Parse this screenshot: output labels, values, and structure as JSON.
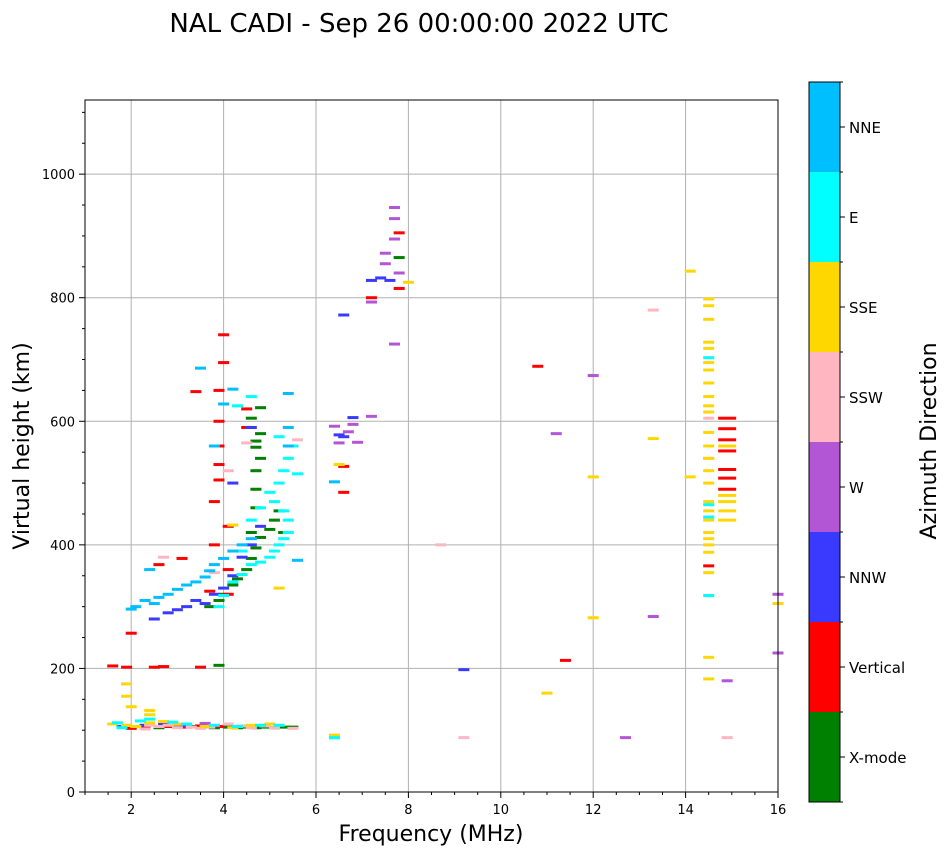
{
  "chart_data": {
    "type": "scatter",
    "title": "NAL CADI - Sep 26 00:00:00 2022 UTC",
    "xlabel": "Frequency (MHz)",
    "ylabel": "Virtual height (km)",
    "xlim": [
      1,
      16
    ],
    "ylim": [
      0,
      1120
    ],
    "xticks": [
      2,
      4,
      6,
      8,
      10,
      12,
      14,
      16
    ],
    "yticks": [
      0,
      200,
      400,
      600,
      800,
      1000
    ],
    "grid": true,
    "colorbar": {
      "title": "Azimuth Direction",
      "categories": [
        {
          "name": "X-mode",
          "color": "#008000"
        },
        {
          "name": "Vertical",
          "color": "#ff0000"
        },
        {
          "name": "NNW",
          "color": "#3a3aff"
        },
        {
          "name": "W",
          "color": "#b256d6"
        },
        {
          "name": "SSW",
          "color": "#ffb6c1"
        },
        {
          "name": "SSE",
          "color": "#ffd700"
        },
        {
          "name": "E",
          "color": "#00ffff"
        },
        {
          "name": "NNE",
          "color": "#00bfff"
        }
      ]
    },
    "series": [
      {
        "name": "X-mode",
        "points": [
          [
            2.2,
            106
          ],
          [
            2.6,
            104
          ],
          [
            3.0,
            105
          ],
          [
            3.4,
            106
          ],
          [
            3.8,
            104
          ],
          [
            4.1,
            105
          ],
          [
            4.3,
            104
          ],
          [
            4.5,
            105
          ],
          [
            4.7,
            104
          ],
          [
            4.9,
            105
          ],
          [
            5.1,
            104
          ],
          [
            5.3,
            105
          ],
          [
            5.5,
            105
          ],
          [
            3.9,
            205
          ],
          [
            3.7,
            300
          ],
          [
            3.9,
            310
          ],
          [
            4.0,
            320
          ],
          [
            4.2,
            335
          ],
          [
            4.3,
            345
          ],
          [
            4.5,
            360
          ],
          [
            4.6,
            378
          ],
          [
            4.7,
            395
          ],
          [
            4.8,
            412
          ],
          [
            5.0,
            425
          ],
          [
            5.1,
            440
          ],
          [
            5.2,
            455
          ],
          [
            4.6,
            420
          ],
          [
            4.7,
            460
          ],
          [
            4.7,
            490
          ],
          [
            4.7,
            520
          ],
          [
            4.8,
            540
          ],
          [
            4.7,
            558
          ],
          [
            4.7,
            568
          ],
          [
            4.8,
            580
          ],
          [
            4.6,
            605
          ],
          [
            4.8,
            622
          ],
          [
            5.3,
            420
          ],
          [
            7.8,
            865
          ],
          [
            6.4,
            88
          ]
        ]
      },
      {
        "name": "Vertical",
        "points": [
          [
            1.6,
            204
          ],
          [
            1.9,
            202
          ],
          [
            2.5,
            202
          ],
          [
            2.7,
            203
          ],
          [
            3.5,
            202
          ],
          [
            2.0,
            257
          ],
          [
            2.6,
            368
          ],
          [
            3.1,
            378
          ],
          [
            3.4,
            648
          ],
          [
            3.7,
            325
          ],
          [
            3.8,
            400
          ],
          [
            3.8,
            470
          ],
          [
            3.9,
            505
          ],
          [
            3.9,
            530
          ],
          [
            3.9,
            560
          ],
          [
            3.9,
            600
          ],
          [
            3.9,
            650
          ],
          [
            4.0,
            695
          ],
          [
            4.0,
            740
          ],
          [
            4.1,
            320
          ],
          [
            4.1,
            360
          ],
          [
            4.1,
            430
          ],
          [
            4.5,
            590
          ],
          [
            4.5,
            620
          ],
          [
            2.0,
            103
          ],
          [
            2.3,
            104
          ],
          [
            2.8,
            106
          ],
          [
            3.2,
            105
          ],
          [
            3.5,
            107
          ],
          [
            3.9,
            106
          ],
          [
            6.6,
            527
          ],
          [
            6.6,
            485
          ],
          [
            7.2,
            800
          ],
          [
            7.8,
            815
          ],
          [
            7.8,
            905
          ],
          [
            10.8,
            689
          ],
          [
            11.4,
            213
          ],
          [
            14.5,
            366
          ],
          [
            14.9,
            605
          ],
          [
            14.9,
            588
          ],
          [
            14.9,
            570
          ],
          [
            14.9,
            552
          ],
          [
            14.9,
            522
          ],
          [
            14.9,
            508
          ],
          [
            14.9,
            490
          ]
        ]
      },
      {
        "name": "NNW",
        "points": [
          [
            2.5,
            280
          ],
          [
            2.8,
            290
          ],
          [
            3.0,
            295
          ],
          [
            3.2,
            300
          ],
          [
            3.4,
            310
          ],
          [
            3.6,
            305
          ],
          [
            3.8,
            320
          ],
          [
            4.0,
            330
          ],
          [
            4.2,
            350
          ],
          [
            4.4,
            380
          ],
          [
            4.6,
            400
          ],
          [
            4.8,
            430
          ],
          [
            4.2,
            500
          ],
          [
            4.6,
            590
          ],
          [
            6.5,
            578
          ],
          [
            6.6,
            575
          ],
          [
            6.8,
            606
          ],
          [
            7.2,
            828
          ],
          [
            7.4,
            832
          ],
          [
            7.6,
            828
          ],
          [
            6.6,
            772
          ],
          [
            9.2,
            198
          ],
          [
            1.8,
            106
          ],
          [
            2.3,
            108
          ],
          [
            2.7,
            110
          ],
          [
            3.1,
            107
          ]
        ]
      },
      {
        "name": "W",
        "points": [
          [
            6.4,
            592
          ],
          [
            6.5,
            565
          ],
          [
            6.7,
            583
          ],
          [
            6.9,
            566
          ],
          [
            6.8,
            595
          ],
          [
            7.2,
            608
          ],
          [
            7.2,
            793
          ],
          [
            7.5,
            855
          ],
          [
            7.5,
            872
          ],
          [
            7.7,
            895
          ],
          [
            7.7,
            928
          ],
          [
            7.7,
            946
          ],
          [
            7.8,
            840
          ],
          [
            7.7,
            725
          ],
          [
            11.2,
            580
          ],
          [
            12.0,
            674
          ],
          [
            13.3,
            284
          ],
          [
            12.7,
            88
          ],
          [
            14.9,
            180
          ],
          [
            16.0,
            320
          ],
          [
            16.0,
            225
          ],
          [
            3.0,
            109
          ],
          [
            3.6,
            111
          ]
        ]
      },
      {
        "name": "SSW",
        "points": [
          [
            2.3,
            102
          ],
          [
            2.4,
            108
          ],
          [
            2.6,
            106
          ],
          [
            2.8,
            108
          ],
          [
            3.0,
            104
          ],
          [
            3.3,
            105
          ],
          [
            3.5,
            103
          ],
          [
            3.7,
            105
          ],
          [
            4.1,
            110
          ],
          [
            4.4,
            107
          ],
          [
            4.6,
            104
          ],
          [
            4.9,
            107
          ],
          [
            5.1,
            104
          ],
          [
            5.5,
            103
          ],
          [
            2.7,
            380
          ],
          [
            3.8,
            355
          ],
          [
            4.1,
            520
          ],
          [
            4.5,
            565
          ],
          [
            5.6,
            570
          ],
          [
            8.7,
            400
          ],
          [
            9.2,
            88
          ],
          [
            13.3,
            780
          ],
          [
            14.9,
            88
          ],
          [
            14.5,
            540
          ],
          [
            14.5,
            605
          ]
        ]
      },
      {
        "name": "SSE",
        "points": [
          [
            1.6,
            110
          ],
          [
            1.9,
            108
          ],
          [
            2.1,
            106
          ],
          [
            2.4,
            112
          ],
          [
            2.7,
            114
          ],
          [
            3.0,
            110
          ],
          [
            3.6,
            106
          ],
          [
            4.2,
            104
          ],
          [
            4.6,
            108
          ],
          [
            5.0,
            110
          ],
          [
            1.9,
            155
          ],
          [
            1.9,
            175
          ],
          [
            2.0,
            138
          ],
          [
            2.4,
            125
          ],
          [
            2.4,
            132
          ],
          [
            4.2,
            432
          ],
          [
            5.2,
            330
          ],
          [
            6.5,
            530
          ],
          [
            8.0,
            825
          ],
          [
            11.0,
            160
          ],
          [
            12.0,
            510
          ],
          [
            12.0,
            282
          ],
          [
            13.3,
            572
          ],
          [
            14.1,
            843
          ],
          [
            14.1,
            510
          ],
          [
            14.5,
            798
          ],
          [
            14.5,
            787
          ],
          [
            14.5,
            765
          ],
          [
            14.5,
            728
          ],
          [
            14.5,
            718
          ],
          [
            14.5,
            695
          ],
          [
            14.5,
            683
          ],
          [
            14.5,
            662
          ],
          [
            14.5,
            640
          ],
          [
            14.5,
            625
          ],
          [
            14.5,
            615
          ],
          [
            14.5,
            582
          ],
          [
            14.5,
            560
          ],
          [
            14.5,
            540
          ],
          [
            14.5,
            520
          ],
          [
            14.5,
            500
          ],
          [
            14.5,
            470
          ],
          [
            14.5,
            455
          ],
          [
            14.5,
            440
          ],
          [
            14.5,
            420
          ],
          [
            14.5,
            410
          ],
          [
            14.5,
            400
          ],
          [
            14.5,
            388
          ],
          [
            14.5,
            355
          ],
          [
            14.5,
            218
          ],
          [
            14.5,
            183
          ],
          [
            14.9,
            440
          ],
          [
            14.9,
            455
          ],
          [
            14.9,
            470
          ],
          [
            14.9,
            480
          ],
          [
            14.9,
            560
          ],
          [
            16.0,
            305
          ],
          [
            6.4,
            92
          ]
        ]
      },
      {
        "name": "E",
        "points": [
          [
            1.7,
            112
          ],
          [
            1.8,
            104
          ],
          [
            2.2,
            115
          ],
          [
            2.4,
            118
          ],
          [
            2.9,
            113
          ],
          [
            3.2,
            110
          ],
          [
            3.8,
            108
          ],
          [
            4.3,
            106
          ],
          [
            4.8,
            108
          ],
          [
            5.2,
            108
          ],
          [
            3.9,
            300
          ],
          [
            4.0,
            318
          ],
          [
            4.2,
            340
          ],
          [
            4.4,
            352
          ],
          [
            4.6,
            368
          ],
          [
            4.8,
            372
          ],
          [
            5.0,
            380
          ],
          [
            5.1,
            390
          ],
          [
            5.2,
            400
          ],
          [
            5.3,
            410
          ],
          [
            5.4,
            420
          ],
          [
            5.4,
            440
          ],
          [
            5.3,
            455
          ],
          [
            5.1,
            470
          ],
          [
            5.0,
            485
          ],
          [
            5.2,
            500
          ],
          [
            5.3,
            520
          ],
          [
            5.4,
            540
          ],
          [
            5.5,
            560
          ],
          [
            5.2,
            575
          ],
          [
            4.4,
            390
          ],
          [
            4.6,
            440
          ],
          [
            4.8,
            460
          ],
          [
            4.3,
            625
          ],
          [
            4.6,
            640
          ],
          [
            5.6,
            515
          ],
          [
            14.5,
            703
          ],
          [
            14.5,
            318
          ],
          [
            14.5,
            445
          ],
          [
            14.5,
            465
          ],
          [
            6.4,
            88
          ]
        ]
      },
      {
        "name": "NNE",
        "points": [
          [
            2.0,
            296
          ],
          [
            2.1,
            300
          ],
          [
            2.3,
            310
          ],
          [
            2.5,
            305
          ],
          [
            2.6,
            315
          ],
          [
            2.8,
            320
          ],
          [
            3.0,
            328
          ],
          [
            3.2,
            335
          ],
          [
            3.4,
            340
          ],
          [
            3.6,
            348
          ],
          [
            3.7,
            358
          ],
          [
            3.8,
            368
          ],
          [
            4.0,
            378
          ],
          [
            4.2,
            390
          ],
          [
            4.4,
            400
          ],
          [
            4.6,
            410
          ],
          [
            3.5,
            686
          ],
          [
            3.8,
            560
          ],
          [
            4.0,
            628
          ],
          [
            4.2,
            652
          ],
          [
            5.4,
            560
          ],
          [
            5.4,
            590
          ],
          [
            5.4,
            645
          ],
          [
            5.6,
            375
          ],
          [
            2.4,
            360
          ],
          [
            6.4,
            502
          ]
        ]
      }
    ]
  }
}
